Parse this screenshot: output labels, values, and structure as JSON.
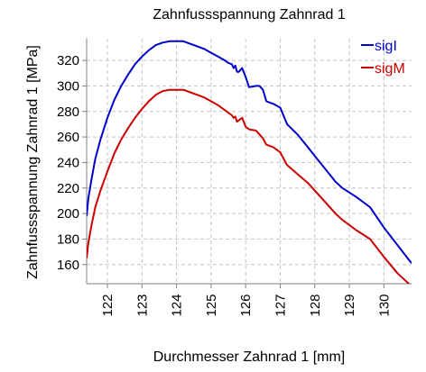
{
  "chart_data": {
    "type": "line",
    "title": "Zahnfussspannung Zahnrad 1",
    "xlabel": "Durchmesser Zahnrad 1 [mm]",
    "ylabel": "Zahnfussspannung Zahnrad 1 [MPa]",
    "xlim": [
      121.4,
      130.8
    ],
    "ylim": [
      145,
      337
    ],
    "xticks": [
      122,
      123,
      124,
      125,
      126,
      127,
      128,
      129,
      130
    ],
    "xtick_labels": [
      "122",
      "123",
      "124",
      "125",
      "126",
      "127",
      "128",
      "129",
      "130"
    ],
    "yticks": [
      160,
      180,
      200,
      220,
      240,
      260,
      280,
      300,
      320
    ],
    "ytick_labels": [
      "160",
      "180",
      "200",
      "220",
      "240",
      "260",
      "280",
      "300",
      "320"
    ],
    "grid": true,
    "legend_position": "top-right",
    "series": [
      {
        "name": "sigI",
        "color": "#0000cc",
        "x": [
          121.4,
          121.45,
          121.55,
          121.65,
          121.8,
          122.0,
          122.2,
          122.4,
          122.6,
          122.8,
          123.0,
          123.2,
          123.4,
          123.6,
          123.8,
          124.0,
          124.2,
          124.4,
          124.6,
          124.8,
          125.0,
          125.2,
          125.4,
          125.5,
          125.6,
          125.65,
          125.7,
          125.75,
          125.8,
          125.9,
          126.0,
          126.1,
          126.3,
          126.4,
          126.5,
          126.6,
          126.8,
          127.0,
          127.2,
          127.5,
          127.8,
          128.0,
          128.3,
          128.6,
          128.8,
          129.2,
          129.6,
          129.8,
          130.0,
          130.4,
          130.8
        ],
        "y": [
          198,
          212,
          228,
          243,
          258,
          275,
          289,
          300,
          309,
          317,
          323,
          328,
          332,
          334,
          335,
          335,
          335,
          333,
          331,
          329,
          326,
          323,
          320,
          318,
          317,
          314,
          316,
          311,
          311,
          314,
          307,
          299,
          300,
          300,
          297,
          288,
          286,
          283,
          270,
          262,
          252,
          245,
          235,
          225,
          220,
          213,
          205,
          197,
          189,
          175,
          161
        ]
      },
      {
        "name": "sigM",
        "color": "#cc0000",
        "x": [
          121.4,
          121.45,
          121.55,
          121.65,
          121.8,
          122.0,
          122.2,
          122.4,
          122.6,
          122.8,
          123.0,
          123.2,
          123.4,
          123.6,
          123.8,
          124.0,
          124.2,
          124.4,
          124.6,
          124.8,
          125.0,
          125.2,
          125.4,
          125.5,
          125.6,
          125.65,
          125.7,
          125.75,
          125.8,
          125.9,
          126.0,
          126.1,
          126.3,
          126.4,
          126.5,
          126.6,
          126.8,
          127.0,
          127.2,
          127.5,
          127.8,
          128.0,
          128.3,
          128.6,
          128.8,
          129.2,
          129.6,
          129.8,
          130.0,
          130.4,
          130.8
        ],
        "y": [
          165,
          177,
          192,
          205,
          218,
          233,
          247,
          258,
          267,
          275,
          282,
          288,
          293,
          296,
          297,
          297,
          297,
          295,
          293,
          291,
          288,
          285,
          281,
          279,
          277,
          275,
          276,
          272,
          273,
          275,
          268,
          266,
          265,
          262,
          259,
          254,
          252,
          248,
          238,
          231,
          224,
          218,
          209,
          200,
          195,
          187,
          180,
          173,
          166,
          153,
          143
        ]
      }
    ]
  }
}
